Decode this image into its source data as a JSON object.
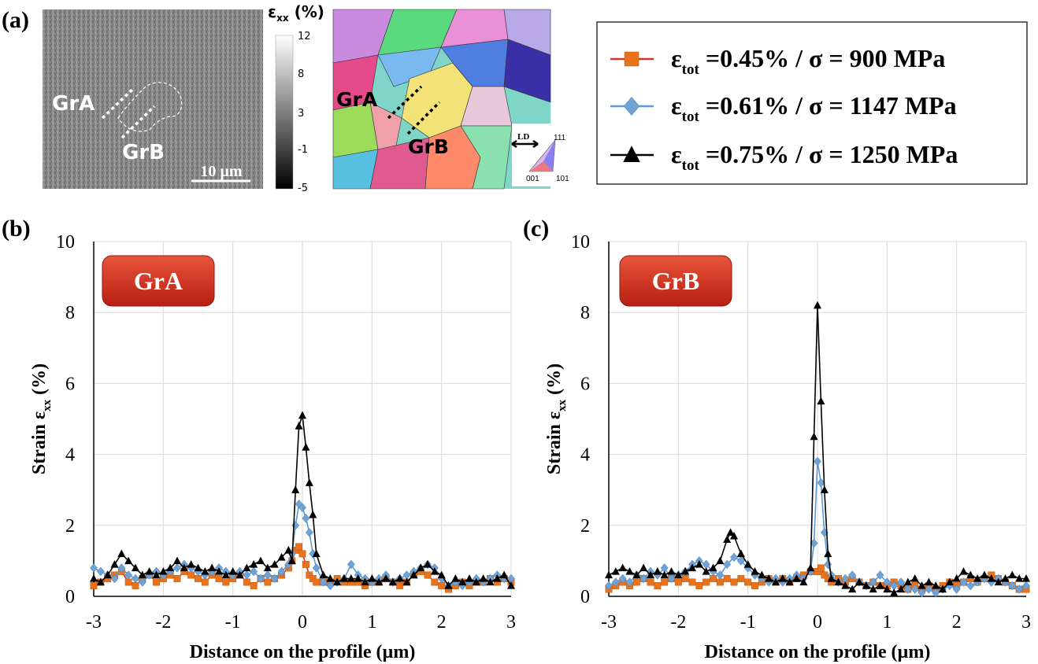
{
  "panel_a": {
    "label": "(a)",
    "grain_a": "GrA",
    "grain_b": "GrB",
    "scale_bar": "10 µm",
    "colorbar_title_main": "ε",
    "colorbar_title_sub": "xx",
    "colorbar_title_unit": " (%)",
    "colorbar_ticks": [
      "12",
      "8",
      "3",
      "-1",
      "-5"
    ],
    "ipf_ld": "LD",
    "ipf_111": "111",
    "ipf_001": "001",
    "ipf_101": "101"
  },
  "legend": {
    "entries": [
      {
        "sub": "tot",
        "rest": " =0.45% / σ = 900 MPa",
        "color": "#e8731c",
        "line": "#d6322a",
        "marker": "square"
      },
      {
        "sub": "tot",
        "rest": " =0.61% / σ = 1147 MPa",
        "color": "#6fa3d6",
        "line": "#5b9bd5",
        "marker": "diamond"
      },
      {
        "sub": "tot",
        "rest": " =0.75% / σ = 1250 MPa",
        "color": "#000000",
        "line": "#000000",
        "marker": "triangle"
      }
    ],
    "symbol": "ε"
  },
  "chart_data": [
    {
      "type": "line",
      "panel_label": "(b)",
      "badge": "GrA",
      "xlabel": "Distance on the profile (µm)",
      "ylabel_main": "Strain ε",
      "ylabel_sub": "xx",
      "ylabel_unit": " (%)",
      "xlim": [
        -3,
        3
      ],
      "ylim": [
        0,
        10
      ],
      "xticks": [
        "-3",
        "-2",
        "-1",
        "0",
        "1",
        "2",
        "3"
      ],
      "yticks": [
        "0",
        "2",
        "4",
        "6",
        "8",
        "10"
      ],
      "grid": true,
      "series": [
        {
          "name": "εtot =0.45% / σ = 900 MPa",
          "marker": "square",
          "color": "#e8731c",
          "line": "#d6322a",
          "x": [
            -3.0,
            -2.9,
            -2.8,
            -2.7,
            -2.6,
            -2.5,
            -2.4,
            -2.3,
            -2.2,
            -2.1,
            -2.0,
            -1.9,
            -1.8,
            -1.7,
            -1.6,
            -1.5,
            -1.4,
            -1.3,
            -1.2,
            -1.1,
            -1.0,
            -0.9,
            -0.8,
            -0.7,
            -0.6,
            -0.5,
            -0.4,
            -0.3,
            -0.2,
            -0.15,
            -0.1,
            -0.05,
            0.0,
            0.05,
            0.1,
            0.15,
            0.2,
            0.3,
            0.4,
            0.5,
            0.6,
            0.7,
            0.8,
            0.9,
            1.0,
            1.1,
            1.2,
            1.3,
            1.4,
            1.5,
            1.6,
            1.7,
            1.8,
            1.9,
            2.0,
            2.1,
            2.2,
            2.3,
            2.4,
            2.5,
            2.6,
            2.7,
            2.8,
            2.9,
            3.0
          ],
          "y": [
            0.3,
            0.4,
            0.5,
            0.6,
            0.7,
            0.4,
            0.3,
            0.5,
            0.6,
            0.4,
            0.5,
            0.6,
            0.5,
            0.7,
            0.6,
            0.5,
            0.4,
            0.6,
            0.5,
            0.4,
            0.5,
            0.6,
            0.4,
            0.3,
            0.5,
            0.4,
            0.5,
            0.6,
            0.8,
            1.0,
            1.3,
            1.4,
            1.2,
            0.9,
            0.6,
            0.5,
            0.4,
            0.4,
            0.4,
            0.5,
            0.4,
            0.4,
            0.4,
            0.3,
            0.4,
            0.4,
            0.5,
            0.4,
            0.3,
            0.4,
            0.6,
            0.7,
            0.6,
            0.4,
            0.3,
            0.2,
            0.3,
            0.4,
            0.3,
            0.4,
            0.4,
            0.5,
            0.4,
            0.5,
            0.4
          ]
        },
        {
          "name": "εtot =0.61% / σ = 1147 MPa",
          "marker": "diamond",
          "color": "#6fa3d6",
          "line": "#5b9bd5",
          "x": [
            -3.0,
            -2.9,
            -2.8,
            -2.7,
            -2.6,
            -2.5,
            -2.4,
            -2.3,
            -2.2,
            -2.1,
            -2.0,
            -1.9,
            -1.8,
            -1.7,
            -1.6,
            -1.5,
            -1.4,
            -1.3,
            -1.2,
            -1.1,
            -1.0,
            -0.9,
            -0.8,
            -0.7,
            -0.6,
            -0.5,
            -0.4,
            -0.3,
            -0.2,
            -0.15,
            -0.1,
            -0.05,
            0.0,
            0.05,
            0.1,
            0.15,
            0.2,
            0.3,
            0.4,
            0.5,
            0.6,
            0.7,
            0.8,
            0.9,
            1.0,
            1.1,
            1.2,
            1.3,
            1.4,
            1.5,
            1.6,
            1.7,
            1.8,
            1.9,
            2.0,
            2.1,
            2.2,
            2.3,
            2.4,
            2.5,
            2.6,
            2.7,
            2.8,
            2.9,
            3.0
          ],
          "y": [
            0.8,
            0.7,
            0.6,
            0.5,
            0.8,
            0.6,
            0.5,
            0.4,
            0.6,
            0.7,
            0.6,
            0.7,
            0.8,
            0.9,
            0.8,
            0.7,
            0.6,
            0.7,
            0.8,
            0.7,
            0.6,
            0.7,
            0.6,
            0.7,
            0.5,
            0.6,
            0.5,
            0.7,
            0.9,
            1.2,
            2.0,
            2.6,
            2.5,
            2.2,
            1.8,
            1.2,
            0.8,
            0.4,
            0.3,
            0.4,
            0.5,
            0.9,
            0.6,
            0.5,
            0.4,
            0.5,
            0.6,
            0.4,
            0.5,
            0.6,
            0.7,
            0.8,
            0.9,
            0.8,
            0.5,
            0.3,
            0.4,
            0.3,
            0.4,
            0.5,
            0.4,
            0.5,
            0.6,
            0.5,
            0.5
          ]
        },
        {
          "name": "εtot =0.75% / σ = 1250 MPa",
          "marker": "triangle",
          "color": "#000000",
          "line": "#000000",
          "x": [
            -3.0,
            -2.9,
            -2.8,
            -2.7,
            -2.6,
            -2.5,
            -2.4,
            -2.3,
            -2.2,
            -2.1,
            -2.0,
            -1.9,
            -1.8,
            -1.7,
            -1.6,
            -1.5,
            -1.4,
            -1.3,
            -1.2,
            -1.1,
            -1.0,
            -0.9,
            -0.8,
            -0.7,
            -0.6,
            -0.5,
            -0.4,
            -0.3,
            -0.2,
            -0.15,
            -0.1,
            -0.05,
            0.0,
            0.05,
            0.1,
            0.15,
            0.2,
            0.3,
            0.4,
            0.5,
            0.6,
            0.7,
            0.8,
            0.9,
            1.0,
            1.1,
            1.2,
            1.3,
            1.4,
            1.5,
            1.6,
            1.7,
            1.8,
            1.9,
            2.0,
            2.1,
            2.2,
            2.3,
            2.4,
            2.5,
            2.6,
            2.7,
            2.8,
            2.9,
            3.0
          ],
          "y": [
            0.5,
            0.4,
            0.6,
            0.9,
            1.2,
            1.0,
            0.8,
            0.6,
            0.7,
            0.6,
            0.7,
            0.8,
            1.0,
            0.8,
            0.9,
            0.8,
            0.7,
            0.8,
            0.7,
            0.6,
            0.7,
            0.6,
            0.8,
            0.9,
            1.0,
            0.8,
            0.9,
            1.1,
            1.3,
            1.0,
            3.0,
            4.8,
            5.1,
            4.2,
            3.2,
            2.3,
            1.2,
            0.6,
            0.5,
            0.4,
            0.5,
            0.5,
            0.5,
            0.4,
            0.5,
            0.4,
            0.5,
            0.4,
            0.5,
            0.4,
            0.6,
            0.8,
            0.9,
            0.7,
            0.6,
            0.3,
            0.5,
            0.4,
            0.5,
            0.4,
            0.5,
            0.4,
            0.5,
            0.6,
            0.3
          ]
        }
      ]
    },
    {
      "type": "line",
      "panel_label": "(c)",
      "badge": "GrB",
      "xlabel": "Distance on the profile (µm)",
      "ylabel_main": "Strain ε",
      "ylabel_sub": "xx",
      "ylabel_unit": " (%)",
      "xlim": [
        -3,
        3
      ],
      "ylim": [
        0,
        10
      ],
      "xticks": [
        "-3",
        "-2",
        "-1",
        "0",
        "1",
        "2",
        "3"
      ],
      "yticks": [
        "0",
        "2",
        "4",
        "6",
        "8",
        "10"
      ],
      "grid": true,
      "series": [
        {
          "name": "εtot =0.45% / σ = 900 MPa",
          "marker": "square",
          "color": "#e8731c",
          "line": "#d6322a",
          "x": [
            -3.0,
            -2.9,
            -2.8,
            -2.7,
            -2.6,
            -2.5,
            -2.4,
            -2.3,
            -2.2,
            -2.1,
            -2.0,
            -1.9,
            -1.8,
            -1.7,
            -1.6,
            -1.5,
            -1.4,
            -1.3,
            -1.2,
            -1.1,
            -1.0,
            -0.9,
            -0.8,
            -0.7,
            -0.6,
            -0.5,
            -0.4,
            -0.3,
            -0.2,
            -0.1,
            0.0,
            0.05,
            0.1,
            0.15,
            0.2,
            0.3,
            0.4,
            0.5,
            0.6,
            0.7,
            0.8,
            0.9,
            1.0,
            1.1,
            1.2,
            1.3,
            1.4,
            1.5,
            1.6,
            1.7,
            1.8,
            1.9,
            2.0,
            2.1,
            2.2,
            2.3,
            2.4,
            2.5,
            2.6,
            2.7,
            2.8,
            2.9,
            3.0
          ],
          "y": [
            0.2,
            0.3,
            0.4,
            0.3,
            0.4,
            0.5,
            0.4,
            0.3,
            0.4,
            0.5,
            0.4,
            0.5,
            0.4,
            0.3,
            0.4,
            0.5,
            0.4,
            0.5,
            0.4,
            0.5,
            0.4,
            0.3,
            0.4,
            0.5,
            0.4,
            0.5,
            0.4,
            0.5,
            0.6,
            0.7,
            0.7,
            0.8,
            0.6,
            0.5,
            0.4,
            0.5,
            0.4,
            0.5,
            0.4,
            0.3,
            0.4,
            0.3,
            0.3,
            0.4,
            0.3,
            0.2,
            0.3,
            0.2,
            0.3,
            0.2,
            0.3,
            0.4,
            0.3,
            0.4,
            0.5,
            0.4,
            0.5,
            0.6,
            0.5,
            0.4,
            0.3,
            0.2,
            0.2
          ]
        },
        {
          "name": "εtot =0.61% / σ = 1147 MPa",
          "marker": "diamond",
          "color": "#6fa3d6",
          "line": "#5b9bd5",
          "x": [
            -3.0,
            -2.9,
            -2.8,
            -2.7,
            -2.6,
            -2.5,
            -2.4,
            -2.3,
            -2.2,
            -2.1,
            -2.0,
            -1.9,
            -1.8,
            -1.7,
            -1.6,
            -1.5,
            -1.4,
            -1.3,
            -1.2,
            -1.1,
            -1.0,
            -0.9,
            -0.8,
            -0.7,
            -0.6,
            -0.5,
            -0.4,
            -0.3,
            -0.2,
            -0.1,
            -0.05,
            0.0,
            0.05,
            0.1,
            0.15,
            0.2,
            0.3,
            0.4,
            0.5,
            0.6,
            0.7,
            0.8,
            0.9,
            1.0,
            1.1,
            1.2,
            1.3,
            1.4,
            1.5,
            1.6,
            1.7,
            1.8,
            1.9,
            2.0,
            2.1,
            2.2,
            2.3,
            2.4,
            2.5,
            2.6,
            2.7,
            2.8,
            2.9,
            3.0
          ],
          "y": [
            0.3,
            0.4,
            0.5,
            0.4,
            0.6,
            0.5,
            0.7,
            0.6,
            0.8,
            0.5,
            0.6,
            0.7,
            0.9,
            1.0,
            0.9,
            0.7,
            0.6,
            0.9,
            1.1,
            1.0,
            0.8,
            0.6,
            0.5,
            0.4,
            0.5,
            0.4,
            0.5,
            0.6,
            0.5,
            0.7,
            1.5,
            3.8,
            3.2,
            1.8,
            0.9,
            0.6,
            0.4,
            0.5,
            0.6,
            0.4,
            0.3,
            0.4,
            0.6,
            0.4,
            0.3,
            0.4,
            0.2,
            0.2,
            0.1,
            0.2,
            0.1,
            0.2,
            0.3,
            0.2,
            0.4,
            0.3,
            0.4,
            0.5,
            0.4,
            0.5,
            0.4,
            0.3,
            0.2,
            0.3
          ]
        },
        {
          "name": "εtot =0.75% / σ = 1250 MPa",
          "marker": "triangle",
          "color": "#000000",
          "line": "#000000",
          "x": [
            -3.0,
            -2.9,
            -2.8,
            -2.7,
            -2.6,
            -2.5,
            -2.4,
            -2.3,
            -2.2,
            -2.1,
            -2.0,
            -1.9,
            -1.8,
            -1.7,
            -1.6,
            -1.5,
            -1.4,
            -1.3,
            -1.25,
            -1.2,
            -1.1,
            -1.0,
            -0.9,
            -0.8,
            -0.7,
            -0.6,
            -0.5,
            -0.4,
            -0.3,
            -0.2,
            -0.1,
            -0.05,
            0.0,
            0.05,
            0.1,
            0.15,
            0.2,
            0.3,
            0.4,
            0.5,
            0.6,
            0.7,
            0.8,
            0.9,
            1.0,
            1.1,
            1.2,
            1.3,
            1.4,
            1.5,
            1.6,
            1.7,
            1.8,
            1.9,
            2.0,
            2.1,
            2.2,
            2.3,
            2.4,
            2.5,
            2.6,
            2.7,
            2.8,
            2.9,
            3.0
          ],
          "y": [
            0.6,
            0.7,
            0.8,
            0.7,
            0.6,
            0.8,
            0.6,
            0.7,
            0.6,
            0.7,
            0.6,
            0.7,
            0.8,
            0.9,
            0.7,
            0.8,
            1.0,
            1.6,
            1.8,
            1.7,
            1.2,
            0.9,
            0.7,
            0.6,
            0.5,
            0.4,
            0.5,
            0.4,
            0.5,
            0.4,
            0.8,
            4.5,
            8.2,
            5.5,
            3.0,
            1.2,
            0.5,
            0.4,
            0.3,
            0.2,
            0.4,
            0.3,
            0.2,
            0.3,
            0.2,
            0.1,
            0.2,
            0.4,
            0.5,
            0.3,
            0.4,
            0.3,
            0.2,
            0.4,
            0.5,
            0.7,
            0.6,
            0.5,
            0.6,
            0.5,
            0.4,
            0.5,
            0.6,
            0.5,
            0.5
          ]
        }
      ]
    }
  ]
}
